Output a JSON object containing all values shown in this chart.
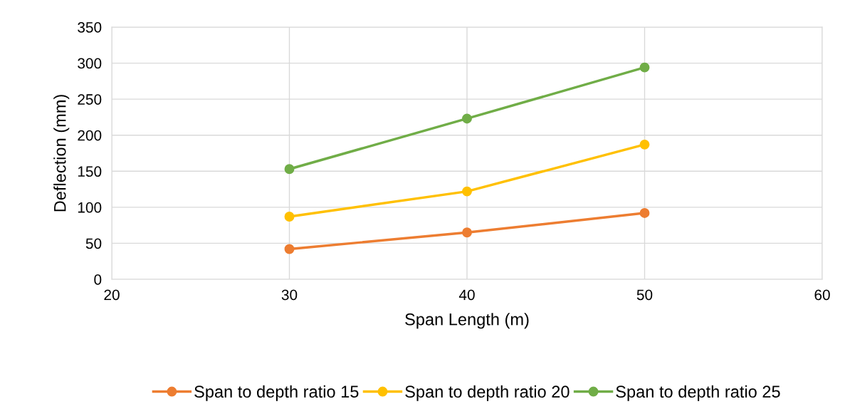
{
  "chart_data": {
    "type": "line",
    "xlabel": "Span Length (m)",
    "ylabel": "Deflection (mm)",
    "x": [
      30,
      40,
      50
    ],
    "series": [
      {
        "name": "Span to depth ratio 15",
        "color": "#ed7d31",
        "values": [
          42,
          65,
          92
        ]
      },
      {
        "name": "Span to depth ratio 20",
        "color": "#ffc000",
        "values": [
          87,
          122,
          187
        ]
      },
      {
        "name": "Span to depth ratio 25",
        "color": "#70ad47",
        "values": [
          153,
          223,
          294
        ]
      }
    ],
    "xlim": [
      20,
      60
    ],
    "xticks": [
      20,
      30,
      40,
      50,
      60
    ],
    "ylim": [
      0,
      350
    ],
    "yticks": [
      0,
      50,
      100,
      150,
      200,
      250,
      300,
      350
    ],
    "grid": true,
    "legend": "bottom",
    "marker": "circle",
    "line_style": "solid"
  }
}
